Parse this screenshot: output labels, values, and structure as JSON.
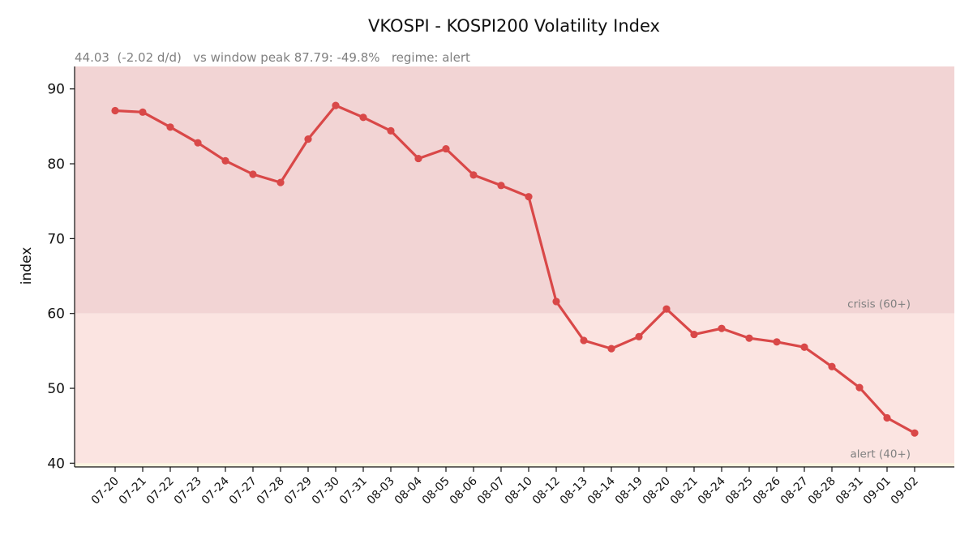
{
  "chart_data": {
    "type": "line",
    "title": "VKOSPI - KOSPI200 Volatility Index",
    "subtitle": "44.03  (-2.02 d/d)   vs window peak 87.79: -49.8%   regime: alert",
    "xlabel": "",
    "ylabel": "index",
    "ylim": [
      39.5,
      93
    ],
    "yticks": [
      40,
      50,
      60,
      70,
      80,
      90
    ],
    "grid": false,
    "categories": [
      "07-20",
      "07-21",
      "07-22",
      "07-23",
      "07-24",
      "07-27",
      "07-28",
      "07-29",
      "07-30",
      "07-31",
      "08-03",
      "08-04",
      "08-05",
      "08-06",
      "08-07",
      "08-10",
      "08-12",
      "08-13",
      "08-14",
      "08-19",
      "08-20",
      "08-21",
      "08-24",
      "08-25",
      "08-26",
      "08-27",
      "08-28",
      "08-31",
      "09-01",
      "09-02"
    ],
    "series": [
      {
        "values": [
          87.1,
          86.9,
          84.9,
          82.8,
          80.4,
          78.6,
          77.5,
          83.3,
          87.79,
          86.2,
          84.4,
          80.7,
          82.0,
          78.5,
          77.1,
          75.6,
          61.6,
          56.4,
          55.3,
          56.9,
          60.6,
          57.2,
          58.0,
          56.7,
          56.2,
          55.5,
          52.9,
          50.1,
          46.05,
          44.03
        ],
        "color": "#d94848"
      }
    ],
    "zones": [
      {
        "label": "crisis (60+)",
        "from": 60,
        "to": 93,
        "color": "#f2d4d4"
      },
      {
        "label": "alert (40+)",
        "from": 40,
        "to": 60,
        "color": "#fbe4e1"
      },
      {
        "label": "",
        "from": 39.5,
        "to": 40,
        "color": "#fcf4e0"
      }
    ]
  }
}
